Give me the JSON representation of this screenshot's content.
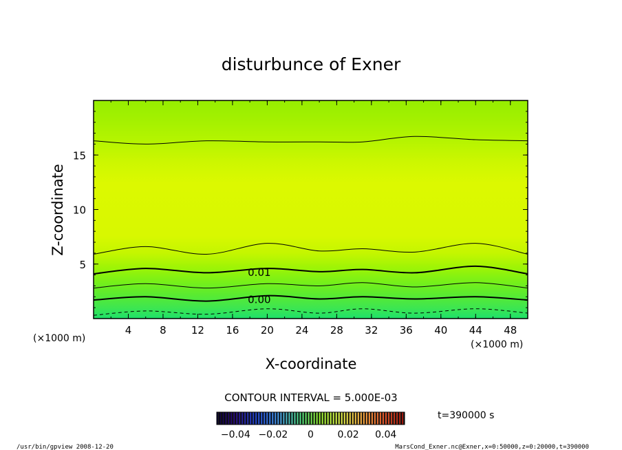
{
  "chart_data": {
    "type": "contour",
    "title": "disturbunce of Exner",
    "xlabel": "X-coordinate",
    "ylabel": "Z-coordinate",
    "x_unit": "(×1000 m)",
    "y_unit": "(×1000 m)",
    "xlim": [
      0,
      50
    ],
    "ylim": [
      0,
      20
    ],
    "x_ticks": [
      4,
      8,
      12,
      16,
      20,
      24,
      28,
      32,
      36,
      40,
      44,
      48
    ],
    "y_ticks": [
      5,
      10,
      15
    ],
    "contour_interval_text": "CONTOUR INTERVAL = 5.000E-03",
    "contour_labels": [
      {
        "text": "0.01",
        "x": 17.5,
        "z": 4.3
      },
      {
        "text": "0.00",
        "x": 17.5,
        "z": 1.8
      }
    ],
    "contours": [
      {
        "level": -0.005,
        "style": "dashed",
        "x": [
          0,
          6,
          13,
          20,
          26,
          31,
          37,
          44,
          50
        ],
        "z": [
          0.3,
          0.7,
          0.4,
          0.9,
          0.5,
          0.9,
          0.5,
          0.9,
          0.5
        ]
      },
      {
        "level": 0.0,
        "style": "thick",
        "x": [
          0,
          6,
          13,
          20,
          26,
          31,
          37,
          44,
          50
        ],
        "z": [
          1.7,
          2.0,
          1.6,
          2.1,
          1.8,
          2.0,
          1.8,
          2.0,
          1.7
        ]
      },
      {
        "level": 0.005,
        "style": "thin",
        "x": [
          0,
          6,
          13,
          20,
          26,
          31,
          37,
          44,
          50
        ],
        "z": [
          2.8,
          3.2,
          2.8,
          3.2,
          3.0,
          3.3,
          2.9,
          3.3,
          2.8
        ]
      },
      {
        "level": 0.01,
        "style": "thick",
        "x": [
          0,
          6,
          13,
          20,
          26,
          31,
          37,
          44,
          50
        ],
        "z": [
          4.1,
          4.6,
          4.2,
          4.6,
          4.3,
          4.5,
          4.2,
          4.8,
          4.1
        ]
      },
      {
        "level": 0.015,
        "style": "thin",
        "x": [
          0,
          6,
          13,
          20,
          26,
          31,
          37,
          44,
          50
        ],
        "z": [
          5.9,
          6.6,
          5.9,
          6.9,
          6.2,
          6.4,
          6.1,
          6.9,
          5.9
        ]
      },
      {
        "level": 0.015,
        "style": "thin",
        "x": [
          0,
          6,
          13,
          20,
          26,
          31,
          37,
          44,
          50
        ],
        "z": [
          16.3,
          16.0,
          16.3,
          16.2,
          16.2,
          16.2,
          16.7,
          16.4,
          16.3
        ]
      }
    ],
    "colorbar": {
      "ticks": [
        "−0.04",
        "−0.02",
        "0",
        "0.02",
        "0.04"
      ],
      "range": [
        -0.05,
        0.05
      ]
    },
    "time_label": "t=390000 s"
  },
  "footer": {
    "left": "/usr/bin/gpview  2008-12-20",
    "right": "MarsCond_Exner.nc@Exner,x=0:50000,z=0:20000,t=390000"
  }
}
